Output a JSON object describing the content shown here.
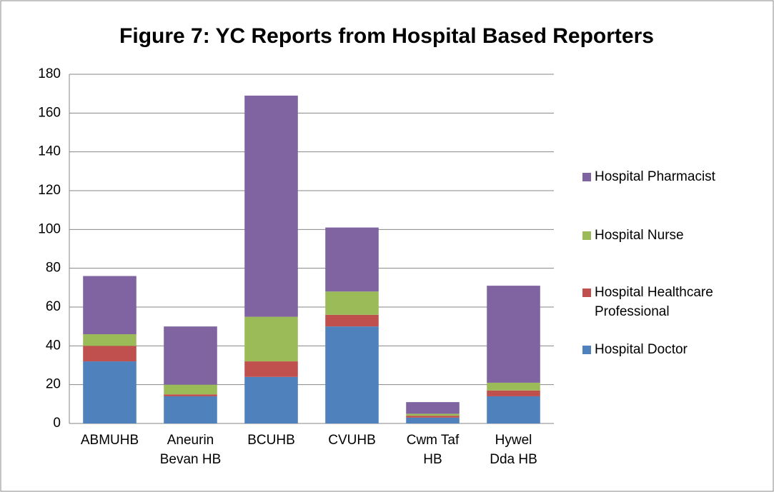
{
  "chart_data": {
    "type": "stacked_bar",
    "title": "Figure 7: YC Reports from Hospital Based Reporters",
    "categories": [
      "ABMUHB",
      "Aneurin\nBevan HB",
      "BCUHB",
      "CVUHB",
      "Cwm Taf\nHB",
      "Hywel\nDda HB"
    ],
    "series": [
      {
        "name": "Hospital Doctor",
        "color": "#4f81bd",
        "values": [
          32,
          14,
          24,
          50,
          3,
          14
        ]
      },
      {
        "name": "Hospital Healthcare\nProfessional",
        "color": "#c0504d",
        "values": [
          8,
          1,
          8,
          6,
          1,
          3
        ]
      },
      {
        "name": "Hospital Nurse",
        "color": "#9bbb59",
        "values": [
          6,
          5,
          23,
          12,
          1,
          4
        ]
      },
      {
        "name": "Hospital Pharmacist",
        "color": "#8064a2",
        "values": [
          30,
          30,
          114,
          33,
          6,
          50
        ]
      }
    ],
    "ylim": [
      0,
      180
    ],
    "yticks": [
      0,
      20,
      40,
      60,
      80,
      100,
      120,
      140,
      160,
      180
    ],
    "grid": true,
    "legend": "right"
  }
}
